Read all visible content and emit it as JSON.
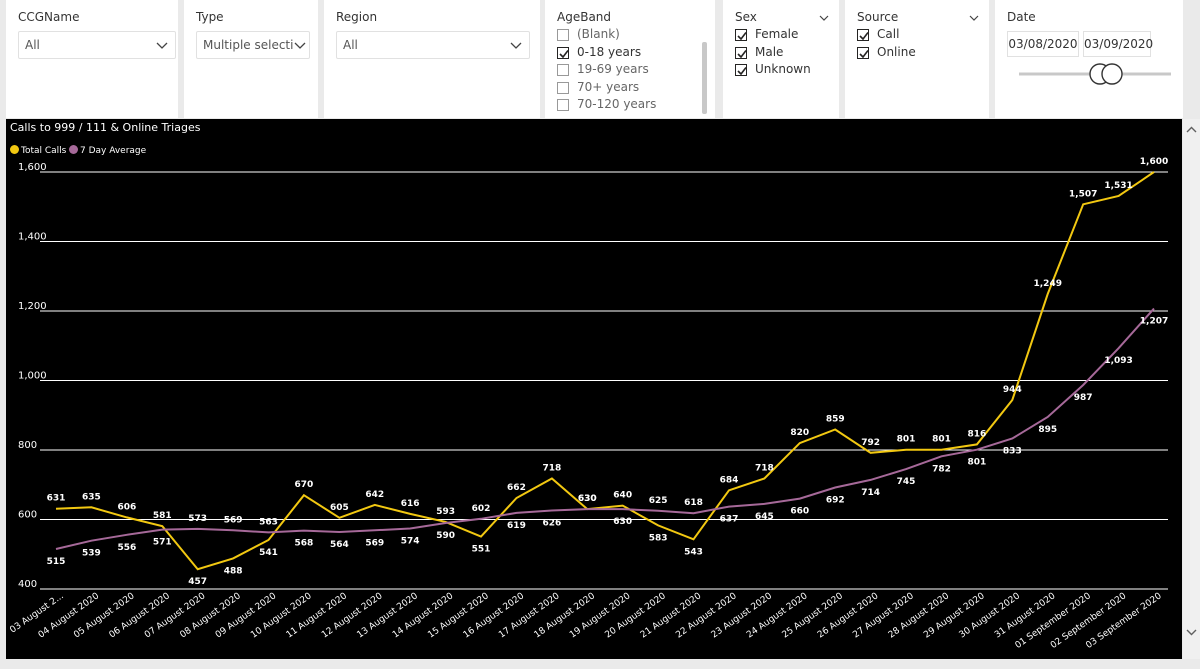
{
  "slicers": {
    "ccg": {
      "title": "CCGName",
      "value": "All"
    },
    "type": {
      "title": "Type",
      "value": "Multiple selecti..."
    },
    "region": {
      "title": "Region",
      "value": "All"
    },
    "ageband": {
      "title": "AgeBand",
      "items": [
        {
          "label": "(Blank)",
          "checked": false
        },
        {
          "label": "0-18 years",
          "checked": true
        },
        {
          "label": "19-69 years",
          "checked": false
        },
        {
          "label": "70+ years",
          "checked": false
        },
        {
          "label": "70-120 years",
          "checked": false
        }
      ]
    },
    "sex": {
      "title": "Sex",
      "items": [
        {
          "label": "Female",
          "checked": true
        },
        {
          "label": "Male",
          "checked": true
        },
        {
          "label": "Unknown",
          "checked": true
        }
      ]
    },
    "source": {
      "title": "Source",
      "items": [
        {
          "label": "Call",
          "checked": true
        },
        {
          "label": "Online",
          "checked": true
        }
      ]
    },
    "date": {
      "title": "Date",
      "start": "03/08/2020",
      "end": "03/09/2020"
    }
  },
  "chart": {
    "title": "Calls to 999 / 111 & Online Triages",
    "legend": [
      {
        "name": "Total Calls",
        "color": "#f2c811"
      },
      {
        "name": "7 Day Average",
        "color": "#a66999"
      }
    ]
  },
  "chart_data": {
    "type": "line",
    "title": "Calls to 999 / 111 & Online Triages",
    "ylim": [
      400,
      1600
    ],
    "yticks": [
      "400",
      "600",
      "800",
      "1,000",
      "1,200",
      "1,400",
      "1,600"
    ],
    "categories": [
      "03 August 2...",
      "04 August 2020",
      "05 August 2020",
      "06 August 2020",
      "07 August 2020",
      "08 August 2020",
      "09 August 2020",
      "10 August 2020",
      "11 August 2020",
      "12 August 2020",
      "13 August 2020",
      "14 August 2020",
      "15 August 2020",
      "16 August 2020",
      "17 August 2020",
      "18 August 2020",
      "19 August 2020",
      "20 August 2020",
      "21 August 2020",
      "22 August 2020",
      "23 August 2020",
      "24 August 2020",
      "25 August 2020",
      "26 August 2020",
      "27 August 2020",
      "28 August 2020",
      "29 August 2020",
      "30 August 2020",
      "31 August 2020",
      "01 September 2020",
      "02 September 2020",
      "03 September 2020"
    ],
    "series": [
      {
        "name": "Total Calls",
        "color": "#f2c811",
        "values": [
          631,
          635,
          606,
          581,
          457,
          488,
          541,
          670,
          605,
          642,
          616,
          593,
          551,
          662,
          718,
          630,
          640,
          583,
          543,
          684,
          718,
          820,
          859,
          792,
          801,
          801,
          816,
          944,
          1249,
          1507,
          1531,
          1600
        ],
        "labels": [
          "631",
          "635",
          "606",
          "581",
          "457",
          "488",
          "541",
          "670",
          "605",
          "642",
          "616",
          "593",
          "551",
          "662",
          "718",
          "630",
          "640",
          "583",
          "543",
          "684",
          "718",
          "820",
          "859",
          "792",
          "801",
          "801",
          "816",
          "944",
          "1,249",
          "1,507",
          "1,531",
          "1,600"
        ]
      },
      {
        "name": "7 Day Average",
        "color": "#a66999",
        "values": [
          515,
          539,
          556,
          571,
          573,
          569,
          563,
          568,
          564,
          569,
          574,
          590,
          602,
          619,
          626,
          630,
          630,
          625,
          618,
          637,
          645,
          660,
          692,
          714,
          745,
          782,
          801,
          833,
          895,
          987,
          1093,
          1207
        ],
        "labels": [
          "515",
          "539",
          "556",
          "571",
          "573",
          "569",
          "563",
          "568",
          "564",
          "569",
          "574",
          "590",
          "602",
          "619",
          "626",
          "630",
          "630",
          "625",
          "618",
          "637",
          "645",
          "660",
          "692",
          "714",
          "745",
          "782",
          "801",
          "833",
          "895",
          "987",
          "1,093",
          "1,207"
        ]
      }
    ]
  }
}
